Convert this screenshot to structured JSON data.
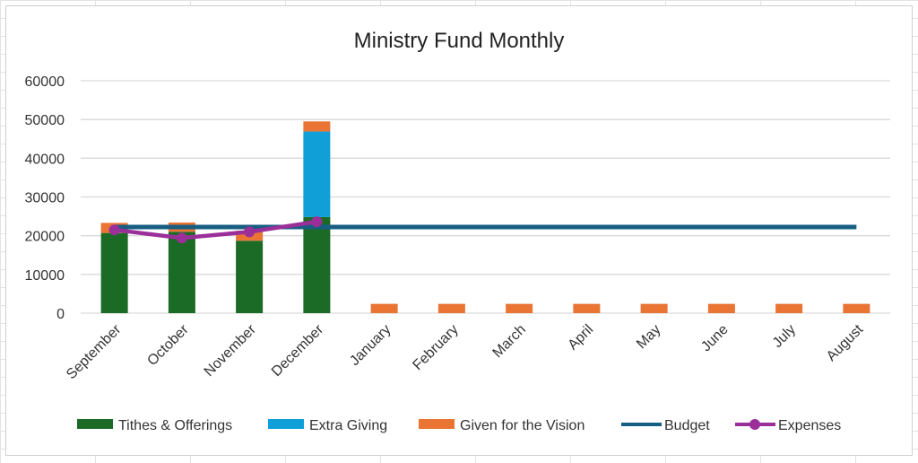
{
  "chart_data": {
    "type": "bar",
    "title": "Ministry Fund Monthly",
    "xlabel": "",
    "ylabel": "",
    "ylim": [
      0,
      60000
    ],
    "yticks": [
      0,
      10000,
      20000,
      30000,
      40000,
      50000,
      60000
    ],
    "grid": true,
    "legend_placement": "bottom",
    "categories": [
      "September",
      "October",
      "November",
      "December",
      "January",
      "February",
      "March",
      "April",
      "May",
      "June",
      "July",
      "August"
    ],
    "series": [
      {
        "name": "Tithes & Offerings",
        "kind": "stacked-bar",
        "color": "#1b6b26",
        "values": [
          20700,
          21000,
          18700,
          24800,
          0,
          0,
          0,
          0,
          0,
          0,
          0,
          0
        ]
      },
      {
        "name": "Extra Giving",
        "kind": "stacked-bar",
        "color": "#119fd8",
        "values": [
          0,
          0,
          0,
          22100,
          0,
          0,
          0,
          0,
          0,
          0,
          0,
          0
        ]
      },
      {
        "name": "Given for the Vision",
        "kind": "stacked-bar",
        "color": "#ea7434",
        "values": [
          2600,
          2400,
          2600,
          2600,
          2400,
          2400,
          2400,
          2400,
          2400,
          2400,
          2400,
          2400
        ]
      },
      {
        "name": "Budget",
        "kind": "line",
        "color": "#175e82",
        "values": [
          22250,
          22250,
          22250,
          22250,
          22250,
          22250,
          22250,
          22250,
          22250,
          22250,
          22250,
          22250
        ]
      },
      {
        "name": "Expenses",
        "kind": "line-marker",
        "color": "#9b2f9a",
        "values": [
          21500,
          19400,
          21000,
          23600,
          null,
          null,
          null,
          null,
          null,
          null,
          null,
          null
        ]
      }
    ]
  }
}
